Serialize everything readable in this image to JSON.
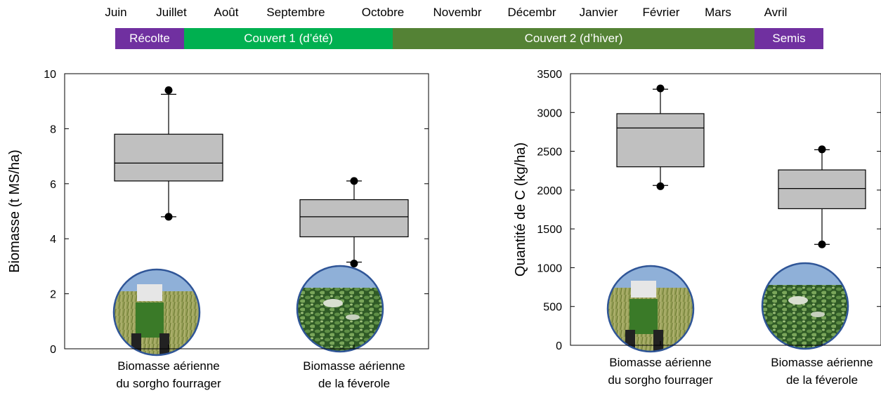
{
  "timeline": {
    "months": [
      "Juin",
      "Juillet",
      "Août",
      "Septembre",
      "Octobre",
      "Novembr",
      "Décembr",
      "Janvier",
      "Février",
      "Mars",
      "Avril"
    ],
    "phases": [
      {
        "label": "Récolte",
        "color": "#7030a0"
      },
      {
        "label": "Couvert 1 (d’été)",
        "color": "#00b050"
      },
      {
        "label": "Couvert 2 (d’hiver)",
        "color": "#548235"
      },
      {
        "label": "Semis",
        "color": "#7030a0"
      }
    ]
  },
  "colors": {
    "box_fill": "#c0c0c0",
    "photo_border": "#2f5597"
  },
  "chart_data": [
    {
      "type": "box",
      "ylabel": "Biomasse (t MS/ha)",
      "ylim": [
        0,
        10
      ],
      "yticks": [
        0,
        2,
        4,
        6,
        8,
        10
      ],
      "categories": [
        {
          "line1": "Biomasse aérienne",
          "line2": "du sorgho fourrager"
        },
        {
          "line1": "Biomasse aérienne",
          "line2": "de la féverole"
        }
      ],
      "boxes": [
        {
          "whisker_low": 4.8,
          "q1": 6.1,
          "median": 6.75,
          "q3": 7.8,
          "whisker_high": 9.25,
          "outliers": [
            4.8,
            9.4
          ]
        },
        {
          "whisker_low": 3.15,
          "q1": 4.07,
          "median": 4.8,
          "q3": 5.42,
          "whisker_high": 6.1,
          "outliers": [
            3.1,
            6.1
          ]
        }
      ],
      "photos": [
        "tractor-in-sorghum-photo",
        "faba-bean-field-photo"
      ]
    },
    {
      "type": "box",
      "ylabel": "Quantité de C (kg/ha)",
      "ylim": [
        0,
        3500
      ],
      "yticks": [
        0,
        500,
        1000,
        1500,
        2000,
        2500,
        3000,
        3500
      ],
      "categories": [
        {
          "line1": "Biomasse aérienne",
          "line2": "du sorgho fourrager"
        },
        {
          "line1": "Biomasse aérienne",
          "line2": "de la féverole"
        }
      ],
      "boxes": [
        {
          "whisker_low": 2060,
          "q1": 2300,
          "median": 2800,
          "q3": 2985,
          "whisker_high": 3300,
          "outliers": [
            2050,
            3310
          ]
        },
        {
          "whisker_low": 1300,
          "q1": 1760,
          "median": 2020,
          "q3": 2260,
          "whisker_high": 2520,
          "outliers": [
            1300,
            2525
          ]
        }
      ],
      "photos": [
        "tractor-in-sorghum-photo",
        "faba-bean-field-photo"
      ]
    }
  ]
}
